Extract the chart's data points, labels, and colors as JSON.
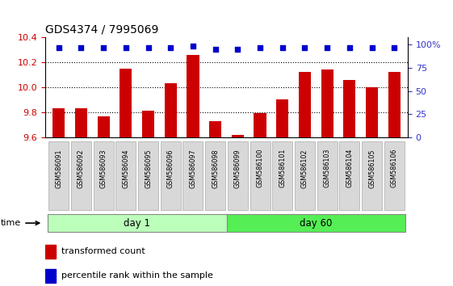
{
  "title": "GDS4374 / 7995069",
  "samples": [
    "GSM586091",
    "GSM586092",
    "GSM586093",
    "GSM586094",
    "GSM586095",
    "GSM586096",
    "GSM586097",
    "GSM586098",
    "GSM586099",
    "GSM586100",
    "GSM586101",
    "GSM586102",
    "GSM586103",
    "GSM586104",
    "GSM586105",
    "GSM586106"
  ],
  "bar_values": [
    9.83,
    9.83,
    9.77,
    10.15,
    9.81,
    10.03,
    10.26,
    9.73,
    9.62,
    9.79,
    9.9,
    10.12,
    10.14,
    10.06,
    10.0,
    10.12
  ],
  "percentile_values": [
    97,
    97,
    97,
    97,
    97,
    97,
    98,
    95,
    95,
    97,
    97,
    97,
    97,
    97,
    97,
    97
  ],
  "bar_color": "#cc0000",
  "percentile_color": "#0000cc",
  "day1_samples": 8,
  "day60_samples": 8,
  "day1_label": "day 1",
  "day60_label": "day 60",
  "day1_color": "#bbffbb",
  "day60_color": "#55ee55",
  "ylim": [
    9.6,
    10.4
  ],
  "yticks_left": [
    9.6,
    9.8,
    10.0,
    10.2,
    10.4
  ],
  "right_yticks": [
    0,
    25,
    50,
    75,
    100
  ],
  "xlabel": "time",
  "legend_bar_label": "transformed count",
  "legend_pct_label": "percentile rank within the sample",
  "tick_label_color_left": "#cc0000",
  "tick_label_color_right": "#3333cc",
  "bar_width": 0.55
}
